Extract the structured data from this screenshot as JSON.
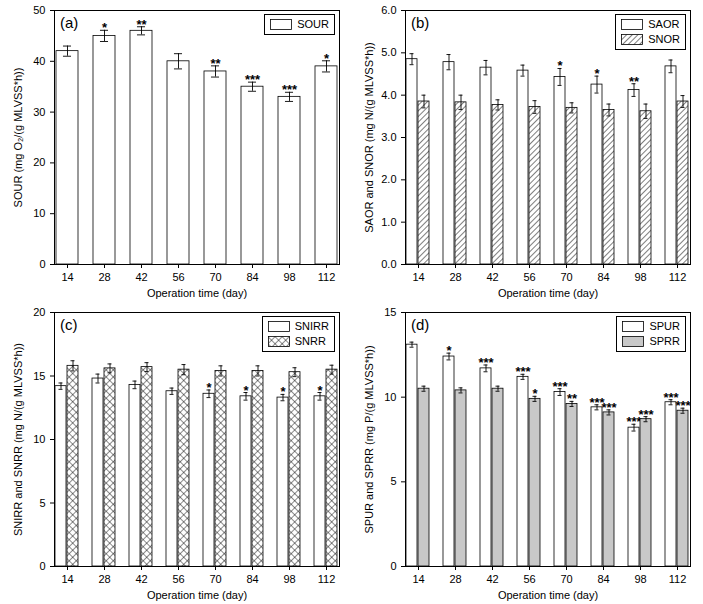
{
  "chart_data": [
    {
      "type": "bar",
      "title": "(a)",
      "x_label": "Operation time (day)",
      "y_label": "SOUR (mg O₂/(g MLVSS*h))",
      "categories": [
        14,
        28,
        42,
        56,
        70,
        84,
        98,
        112
      ],
      "series": [
        {
          "name": "SOUR",
          "color": "#ffffff",
          "values": [
            42,
            45,
            46,
            40,
            38,
            35,
            33,
            39
          ],
          "errors": [
            1,
            1.1,
            0.8,
            1.5,
            1.1,
            0.9,
            0.9,
            1.1
          ],
          "significance": [
            "",
            "*",
            "**",
            "",
            "**",
            "***",
            "***",
            "*"
          ]
        }
      ],
      "ylim": [
        0,
        50
      ],
      "yticks": [
        0,
        10,
        20,
        30,
        40,
        50
      ],
      "legend": "upper right"
    },
    {
      "type": "bar",
      "title": "(b)",
      "x_label": "Operation time (day)",
      "y_label": "SAOR and SNOR (mg N/(g MLVSS*h))",
      "categories": [
        14,
        28,
        42,
        56,
        70,
        84,
        98,
        112
      ],
      "series": [
        {
          "name": "SAOR",
          "color": "#ffffff",
          "values": [
            4.85,
            4.78,
            4.65,
            4.58,
            4.43,
            4.25,
            4.12,
            4.68
          ],
          "errors": [
            0.13,
            0.18,
            0.17,
            0.13,
            0.2,
            0.2,
            0.15,
            0.15
          ],
          "significance": [
            "",
            "",
            "",
            "",
            "*",
            "*",
            "**",
            ""
          ]
        },
        {
          "name": "SNOR",
          "color": "#ffffff",
          "marker": "diagonal",
          "values": [
            3.85,
            3.83,
            3.77,
            3.72,
            3.7,
            3.65,
            3.62,
            3.85
          ],
          "errors": [
            0.15,
            0.17,
            0.12,
            0.15,
            0.12,
            0.14,
            0.17,
            0.14
          ],
          "significance": [
            "",
            "",
            "",
            "",
            "",
            "",
            "",
            ""
          ]
        }
      ],
      "ylim": [
        0,
        6
      ],
      "yticks": [
        0,
        1,
        2,
        3,
        4,
        5,
        6
      ],
      "legend": "upper right"
    },
    {
      "type": "bar",
      "title": "(c)",
      "x_label": "Operation time (day)",
      "y_label": "SNIRR and SNRR (mg N/(g MLVSS*h))",
      "categories": [
        14,
        28,
        42,
        56,
        70,
        84,
        98,
        112
      ],
      "series": [
        {
          "name": "SNIRR",
          "color": "#ffffff",
          "values": [
            14.2,
            14.8,
            14.3,
            13.8,
            13.6,
            13.4,
            13.3,
            13.4
          ],
          "errors": [
            0.25,
            0.35,
            0.3,
            0.25,
            0.3,
            0.3,
            0.25,
            0.3
          ],
          "significance": [
            "",
            "",
            "",
            "",
            "*",
            "*",
            "*",
            "*"
          ]
        },
        {
          "name": "SNRR",
          "color": "#ffffff",
          "marker": "crosshatch",
          "values": [
            15.8,
            15.6,
            15.7,
            15.5,
            15.4,
            15.4,
            15.3,
            15.5
          ],
          "errors": [
            0.4,
            0.35,
            0.35,
            0.4,
            0.4,
            0.4,
            0.35,
            0.35
          ],
          "significance": [
            "",
            "",
            "",
            "",
            "",
            "",
            "",
            ""
          ]
        }
      ],
      "ylim": [
        0,
        20
      ],
      "yticks": [
        0,
        5,
        10,
        15,
        20
      ],
      "legend": "upper right"
    },
    {
      "type": "bar",
      "title": "(d)",
      "x_label": "Operation time (day)",
      "y_label": "SPUR and SPRR (mg P/(g MLVSS*h))",
      "categories": [
        14,
        28,
        42,
        56,
        70,
        84,
        98,
        112
      ],
      "series": [
        {
          "name": "SPUR",
          "color": "#ffffff",
          "values": [
            13.1,
            12.4,
            11.7,
            11.2,
            10.3,
            9.4,
            8.2,
            9.7
          ],
          "errors": [
            0.15,
            0.2,
            0.2,
            0.15,
            0.2,
            0.15,
            0.2,
            0.15
          ],
          "significance": [
            "",
            "*",
            "***",
            "***",
            "***",
            "***",
            "***",
            "***"
          ]
        },
        {
          "name": "SPRR",
          "color": "#c8c8c8",
          "values": [
            10.5,
            10.4,
            10.5,
            9.9,
            9.6,
            9.1,
            8.7,
            9.2
          ],
          "errors": [
            0.15,
            0.15,
            0.15,
            0.15,
            0.15,
            0.15,
            0.15,
            0.15
          ],
          "significance": [
            "",
            "",
            "",
            "*",
            "**",
            "***",
            "***",
            "***"
          ]
        }
      ],
      "ylim": [
        0,
        15
      ],
      "yticks": [
        0,
        5,
        10,
        15
      ],
      "legend": "upper right"
    }
  ]
}
